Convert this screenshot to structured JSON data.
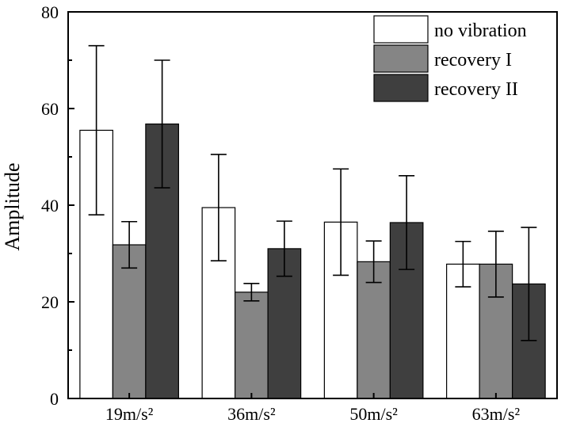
{
  "chart_data": {
    "type": "bar",
    "title": "",
    "xlabel": "",
    "ylabel": "Amplitude",
    "ylim": [
      0,
      80
    ],
    "yticks": [
      0,
      20,
      40,
      60,
      80
    ],
    "categories": [
      "19m/s²",
      "36m/s²",
      "50m/s²",
      "63m/s²"
    ],
    "series": [
      {
        "name": "no vibration",
        "color": "#ffffff",
        "values": [
          55.5,
          39.5,
          36.5,
          27.8
        ],
        "error": [
          17.5,
          11.0,
          11.0,
          4.7
        ]
      },
      {
        "name": "recovery I",
        "color": "#858585",
        "values": [
          31.8,
          22.0,
          28.3,
          27.8
        ],
        "error": [
          4.8,
          1.8,
          4.3,
          6.8
        ]
      },
      {
        "name": "recovery II",
        "color": "#3f3f3f",
        "values": [
          56.8,
          31.0,
          36.4,
          23.7
        ],
        "error": [
          13.2,
          5.7,
          9.7,
          11.7
        ]
      }
    ],
    "legend": {
      "position": "top-right"
    }
  }
}
